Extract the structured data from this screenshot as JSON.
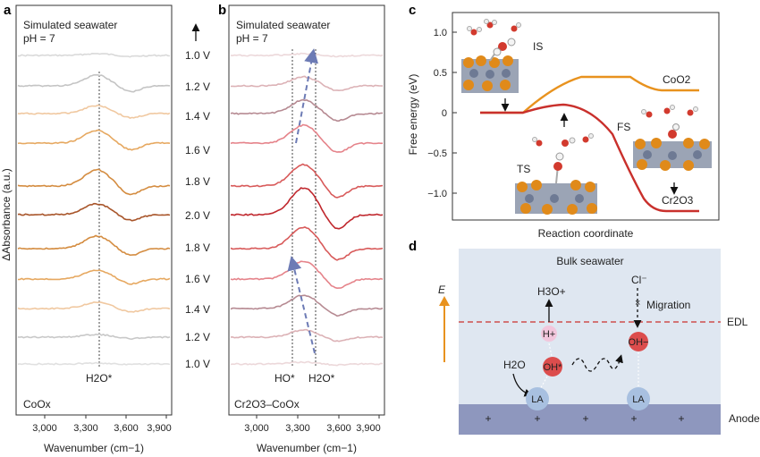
{
  "panels": {
    "a": {
      "letter": "a",
      "header_line1": "Simulated seawater",
      "header_line2": "pH = 7",
      "sample_label": "CoOx",
      "marker_label": "H2O*",
      "x_axis_label": "Wavenumber (cm−1)",
      "y_axis_label": "ΔAbsorbance (a.u.)",
      "x_ticks": [
        "3,000",
        "3,300",
        "3,600",
        "3,900"
      ]
    },
    "b": {
      "letter": "b",
      "header_line1": "Simulated seawater",
      "header_line2": "pH = 7",
      "sample_label": "Cr2O3–CoOx",
      "marker_ho": "HO*",
      "marker_h2o": "H2O*",
      "x_axis_label": "Wavenumber (cm−1)",
      "x_ticks": [
        "3,000",
        "3,300",
        "3,600",
        "3,900"
      ]
    },
    "voltages": [
      "1.0 V",
      "1.2 V",
      "1.4 V",
      "1.6 V",
      "1.8 V",
      "2.0 V",
      "1.8 V",
      "1.6 V",
      "1.4 V",
      "1.2 V",
      "1.0 V"
    ],
    "c": {
      "letter": "c",
      "y_axis_label": "Free energy (eV)",
      "x_axis_label": "Reaction coordinate",
      "y_ticks": [
        "1.0",
        "0.5",
        "0",
        "−0.5",
        "−1.0"
      ],
      "labels": {
        "is": "IS",
        "ts": "TS",
        "fs": "FS",
        "coo2": "CoO2",
        "cr2o3": "Cr2O3"
      },
      "colors": {
        "orange_path": "#e8921e",
        "red_path": "#c9302c"
      }
    },
    "d": {
      "letter": "d",
      "bulk_label": "Bulk seawater",
      "e_label": "E",
      "edl_label": "EDL",
      "anode_label": "Anode",
      "migration_label": "Migration",
      "species": {
        "cl": "Cl⁻",
        "h3o": "H3O+",
        "h_plus": "H+",
        "oh_minus": "OH−",
        "h2o": "H2O",
        "oh_star": "OH*",
        "la1": "LA",
        "la2": "LA"
      },
      "plus_signs": [
        "+",
        "+",
        "+",
        "+",
        "+",
        "+"
      ]
    }
  }
}
